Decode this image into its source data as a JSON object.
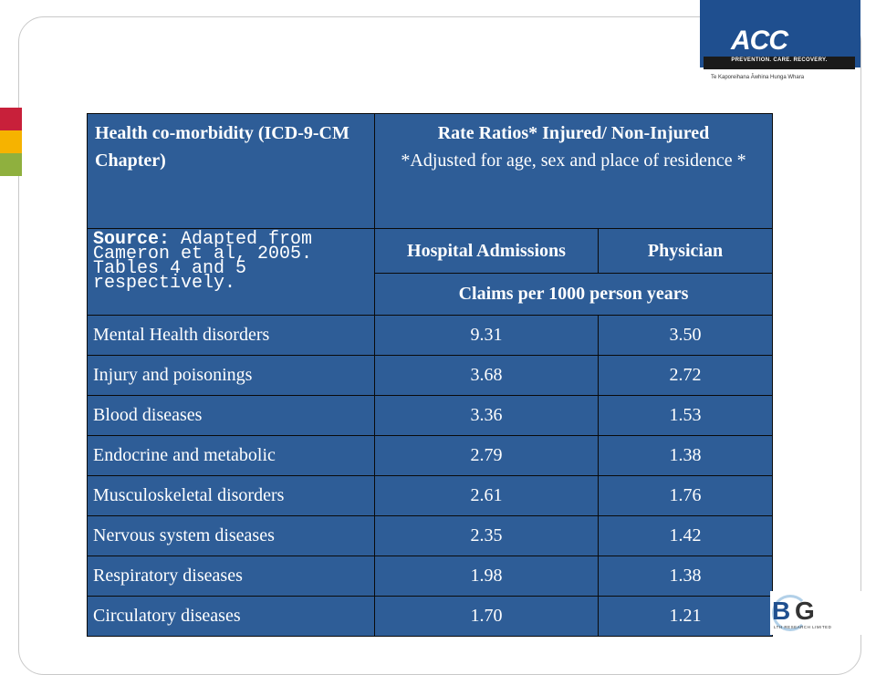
{
  "logo": {
    "mark": "ACC",
    "tagline": "PREVENTION. CARE. RECOVERY.",
    "subtitle": "Te Kaporeihana Āwhina Hunga Whara"
  },
  "badge": {
    "b": "B",
    "g": "G",
    "sub": "LTH RESEARCH LIMITED"
  },
  "table": {
    "header_left": "Health co-morbidity (ICD-9-CM Chapter)",
    "header_right_title": "Rate Ratios* Injured/ Non-Injured",
    "header_right_note": "*Adjusted for age, sex and place of residence *",
    "source_label": "Source:",
    "source_text": "Adapted from Cameron et al, 2005. Tables 4 and 5 respectively.",
    "col_hospital": "Hospital Admissions",
    "col_physician": "Physician",
    "claims_label": "Claims per 1000 person years",
    "rows": [
      {
        "label": "Mental Health disorders",
        "hospital": "9.31",
        "physician": "3.50"
      },
      {
        "label": "Injury and poisonings",
        "hospital": "3.68",
        "physician": "2.72"
      },
      {
        "label": "Blood diseases",
        "hospital": "3.36",
        "physician": "1.53"
      },
      {
        "label": "Endocrine and metabolic",
        "hospital": "2.79",
        "physician": "1.38"
      },
      {
        "label": "Musculoskeletal disorders",
        "hospital": "2.61",
        "physician": "1.76"
      },
      {
        "label": "Nervous system diseases",
        "hospital": "2.35",
        "physician": "1.42"
      },
      {
        "label": "Respiratory diseases",
        "hospital": "1.98",
        "physician": "1.38"
      },
      {
        "label": "Circulatory diseases",
        "hospital": "1.70",
        "physician": "1.21"
      }
    ]
  },
  "colors": {
    "table_bg": "#2e5d97",
    "logo_blue": "#1f4f8f",
    "accent_red": "#c8203a",
    "accent_orange": "#f6b300",
    "accent_green": "#8fb03e"
  }
}
